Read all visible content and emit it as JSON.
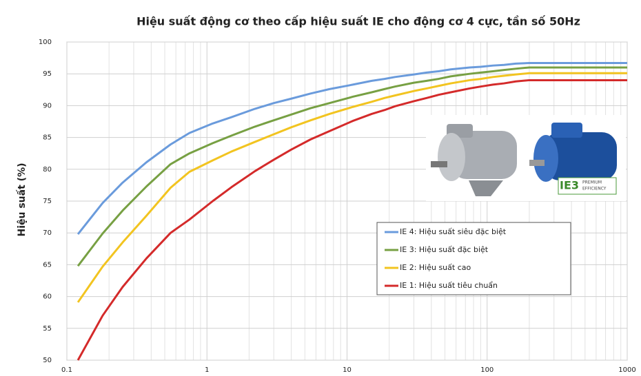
{
  "chart_data": {
    "type": "line",
    "title": "Hiệu suất động cơ theo cấp hiệu suất IE cho động cơ 4 cực, tần số 50Hz",
    "y_label": "Hiệu suất (%)",
    "x_scale": "log",
    "x": [
      0.12,
      0.18,
      0.25,
      0.37,
      0.55,
      0.75,
      1.1,
      1.5,
      2.2,
      3,
      4,
      5.5,
      7.5,
      11,
      15,
      18.5,
      22,
      30,
      37,
      45,
      55,
      75,
      90,
      110,
      132,
      160,
      200,
      1000
    ],
    "series": [
      {
        "name": "IE 4: Hiệu suất siêu đặc biệt",
        "color": "#6a9bdc",
        "values": [
          69.8,
          74.7,
          77.9,
          81.1,
          83.9,
          85.7,
          87.2,
          88.2,
          89.5,
          90.4,
          91.1,
          91.9,
          92.6,
          93.3,
          93.9,
          94.2,
          94.5,
          94.9,
          95.2,
          95.4,
          95.7,
          96.0,
          96.1,
          96.3,
          96.4,
          96.6,
          96.7,
          96.7
        ]
      },
      {
        "name": "IE 3: Hiệu suất đặc biệt",
        "color": "#77a043",
        "values": [
          64.8,
          69.9,
          73.5,
          77.3,
          80.8,
          82.5,
          84.1,
          85.3,
          86.7,
          87.7,
          88.6,
          89.6,
          90.4,
          91.4,
          92.1,
          92.6,
          93.0,
          93.6,
          93.9,
          94.2,
          94.6,
          95.0,
          95.2,
          95.4,
          95.6,
          95.8,
          96.0,
          96.0
        ]
      },
      {
        "name": "IE 2: Hiệu suất cao",
        "color": "#f2c420",
        "values": [
          59.1,
          64.7,
          68.5,
          72.7,
          77.1,
          79.6,
          81.4,
          82.8,
          84.3,
          85.5,
          86.6,
          87.7,
          88.7,
          89.8,
          90.6,
          91.2,
          91.6,
          92.3,
          92.7,
          93.1,
          93.5,
          94.0,
          94.2,
          94.5,
          94.7,
          94.9,
          95.1,
          95.1
        ]
      },
      {
        "name": "IE 1: Hiệu suất tiêu chuẩn",
        "color": "#d42a2a",
        "values": [
          50.0,
          57.0,
          61.5,
          66.0,
          70.0,
          72.1,
          75.0,
          77.2,
          79.7,
          81.5,
          83.1,
          84.7,
          86.0,
          87.6,
          88.7,
          89.3,
          89.9,
          90.7,
          91.2,
          91.7,
          92.1,
          92.7,
          93.0,
          93.3,
          93.5,
          93.8,
          94.0,
          94.0
        ]
      }
    ],
    "xlim": [
      0.1,
      1000
    ],
    "xticks": [
      0.1,
      1,
      10,
      100,
      1000
    ],
    "ylim": [
      50,
      100
    ],
    "yticks": [
      50,
      55,
      60,
      65,
      70,
      75,
      80,
      85,
      90,
      95,
      100
    ],
    "grid": true,
    "legend": "center-right"
  },
  "badge": {
    "mark": "IE3",
    "line1": "PREMIUM",
    "line2": "EFFICIENCY"
  }
}
